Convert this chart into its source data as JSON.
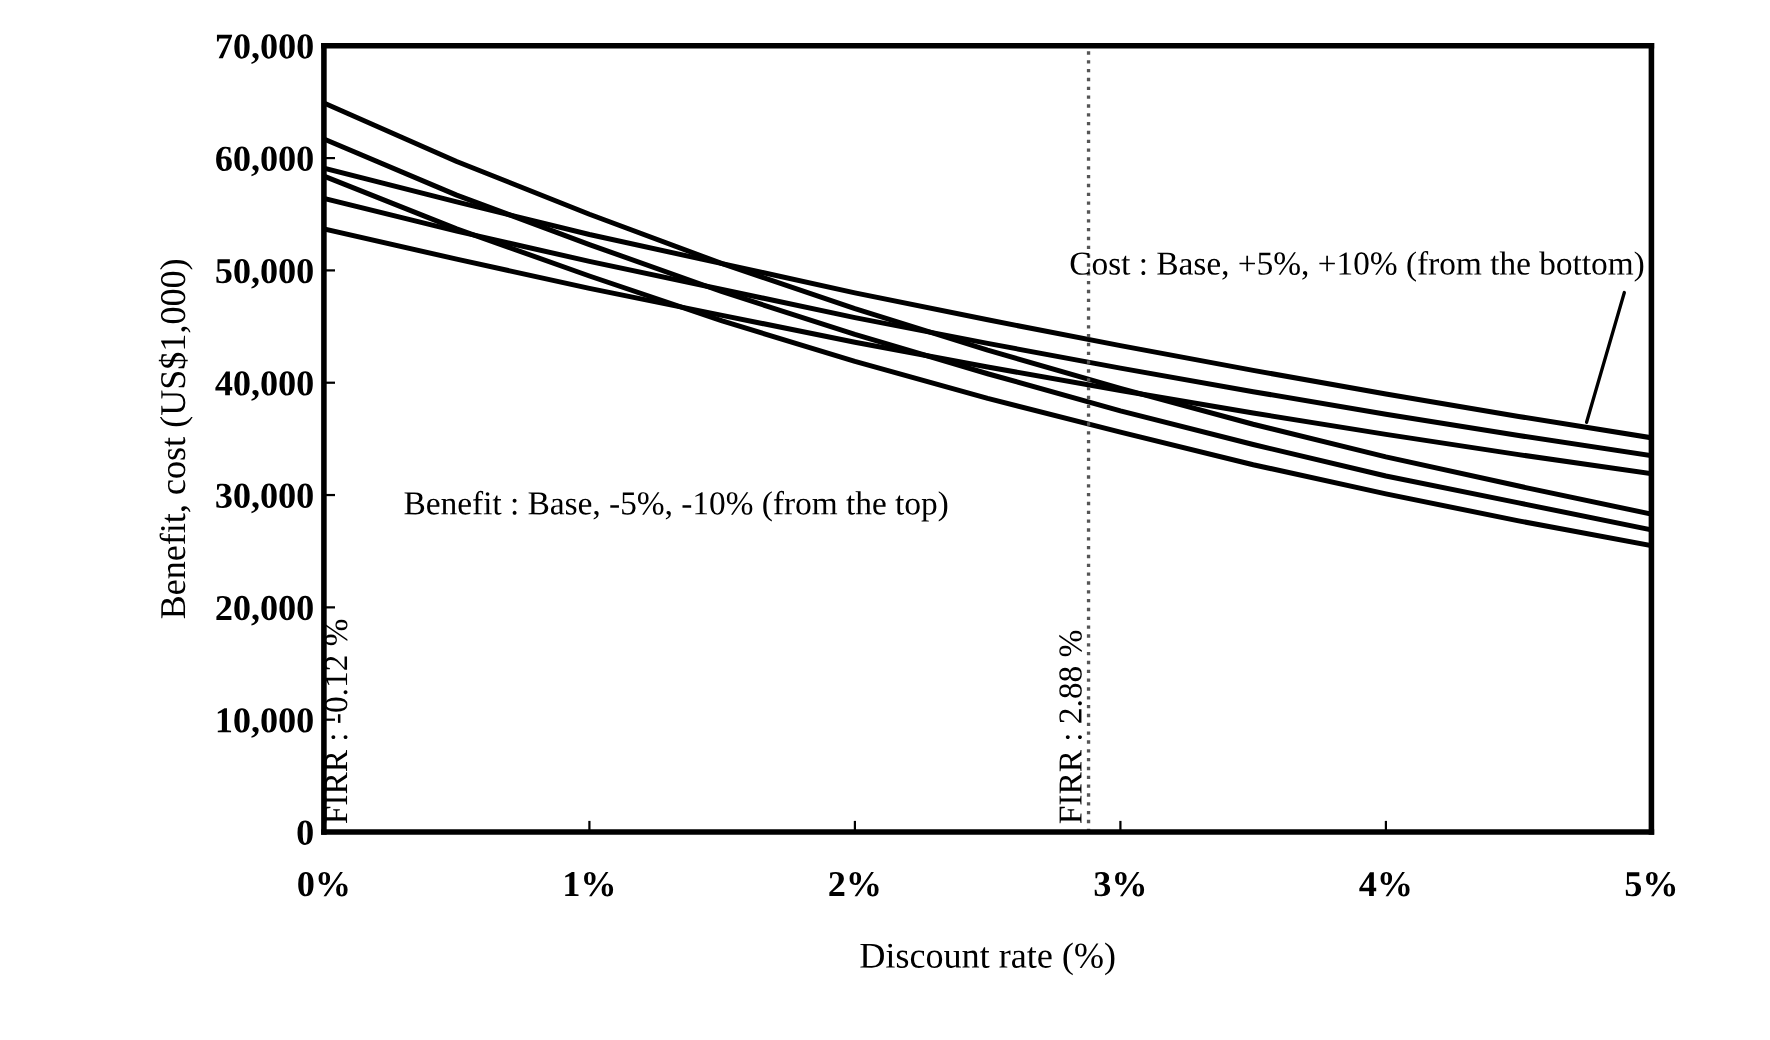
{
  "chart_data": {
    "type": "line",
    "xlabel": "Discount rate (%)",
    "ylabel": "Benefit, cost (US$1,000)",
    "x": [
      0,
      0.5,
      1,
      1.5,
      2,
      2.5,
      3,
      3.5,
      4,
      4.5,
      5
    ],
    "series": [
      {
        "color": "#000000",
        "values": [
          64900,
          59700,
          55000,
          50600,
          46600,
          42900,
          39500,
          36300,
          33400,
          30800,
          28300
        ]
      },
      {
        "color": "#000000",
        "values": [
          61700,
          56700,
          52300,
          48100,
          44300,
          40800,
          37500,
          34500,
          31700,
          29300,
          26900
        ]
      },
      {
        "color": "#000000",
        "values": [
          58400,
          53700,
          49500,
          45500,
          41900,
          38600,
          35600,
          32700,
          30100,
          27700,
          25500
        ]
      },
      {
        "color": "#000000",
        "values": [
          53700,
          51000,
          48400,
          46000,
          43600,
          41400,
          39300,
          37300,
          35400,
          33600,
          31900
        ]
      },
      {
        "color": "#000000",
        "values": [
          56400,
          53500,
          50800,
          48300,
          45800,
          43500,
          41300,
          39200,
          37200,
          35300,
          33500
        ]
      },
      {
        "color": "#000000",
        "values": [
          59100,
          56100,
          53200,
          50600,
          48000,
          45600,
          43300,
          41100,
          39000,
          37000,
          35100
        ]
      }
    ],
    "xlim": [
      0,
      5
    ],
    "xticks": [
      {
        "value": 0,
        "label": "0%"
      },
      {
        "value": 1,
        "label": "1%"
      },
      {
        "value": 2,
        "label": "2%"
      },
      {
        "value": 3,
        "label": "3%"
      },
      {
        "value": 4,
        "label": "4%"
      },
      {
        "value": 5,
        "label": "5%"
      }
    ],
    "ylim": [
      0,
      70000
    ],
    "yticks": [
      {
        "value": 0,
        "label": "0"
      },
      {
        "value": 10000,
        "label": "10,000"
      },
      {
        "value": 20000,
        "label": "20,000"
      },
      {
        "value": 30000,
        "label": "30,000"
      },
      {
        "value": 40000,
        "label": "40,000"
      },
      {
        "value": 50000,
        "label": "50,000"
      },
      {
        "value": 60000,
        "label": "60,000"
      },
      {
        "value": 70000,
        "label": "70,000"
      }
    ],
    "ref_lines": [
      {
        "axis": "x",
        "value": 2.88,
        "label": "FIRR : 2.88 %",
        "line_style": "dotted",
        "color": "#555555"
      }
    ],
    "annotations": [
      {
        "text": "Cost : Base, +5%, +10% (from the bottom)",
        "x": 4.75,
        "y": 36000
      },
      "Benefit : Base, -5%, -10% (from the top)",
      "FIRR : -0.12 %"
    ],
    "grid": false,
    "legend": false,
    "marker": "none",
    "line_style": "solid"
  }
}
